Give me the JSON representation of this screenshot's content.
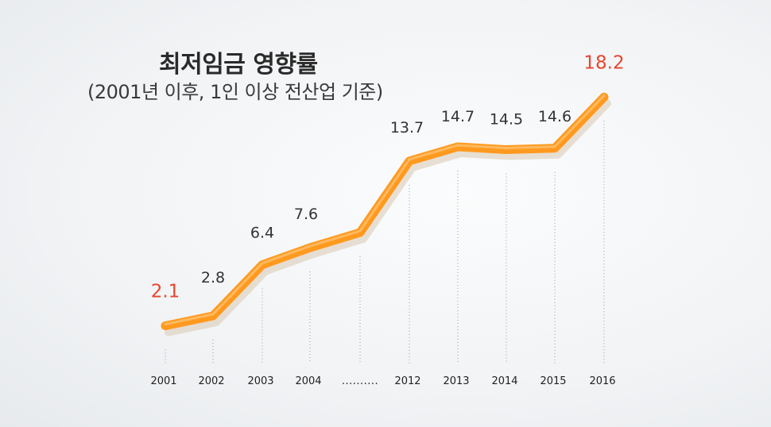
{
  "title": "최저임금 영향률",
  "subtitle": "(2001년 이후, 1인 이상 전산업 기준)",
  "colors": {
    "line": "#ff9a1f",
    "line_shadow": "#d9c8b2",
    "highlight_label": "#e8452e",
    "label": "#333333",
    "axis_label": "#222222",
    "guide": "#9a9a9a"
  },
  "chart_data": {
    "type": "line",
    "categories": [
      "2001",
      "2002",
      "2003",
      "2004",
      "..........",
      "2012",
      "2013",
      "2014",
      "2015",
      "2016"
    ],
    "values": [
      2.1,
      2.8,
      6.4,
      7.6,
      null,
      13.7,
      14.7,
      14.5,
      14.6,
      18.2
    ],
    "data_labels": [
      "2.1",
      "2.8",
      "6.4",
      "7.6",
      "",
      "13.7",
      "14.7",
      "14.5",
      "14.6",
      "18.2"
    ],
    "highlighted_labels": [
      "2.1",
      "18.2"
    ],
    "title": "최저임금 영향률",
    "subtitle": "(2001년 이후, 1인 이상 전산업 기준)",
    "grid": false
  }
}
